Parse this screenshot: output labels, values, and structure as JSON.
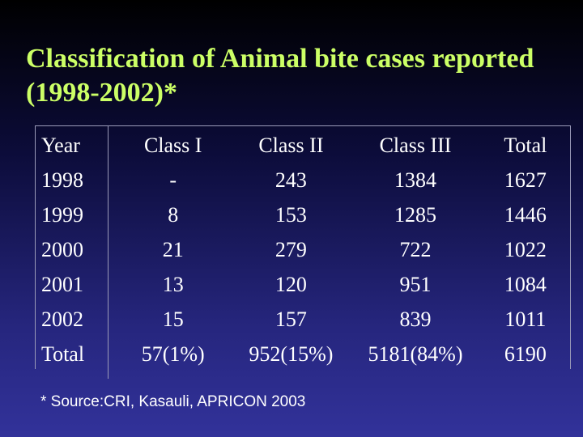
{
  "title": "Classification of Animal bite cases reported (1998-2002)*",
  "table": {
    "headers": [
      "Year",
      "Class I",
      "Class II",
      "Class III",
      "Total"
    ],
    "rows": [
      [
        "1998",
        "-",
        "243",
        "1384",
        "1627"
      ],
      [
        "1999",
        "8",
        "153",
        "1285",
        "1446"
      ],
      [
        "2000",
        "21",
        "279",
        "722",
        "1022"
      ],
      [
        "2001",
        "13",
        "120",
        "951",
        "1084"
      ],
      [
        "2002",
        "15",
        "157",
        "839",
        "1011"
      ],
      [
        "Total",
        "57(1%)",
        "952(15%)",
        "5181(84%)",
        "6190"
      ]
    ]
  },
  "footnote": "* Source:CRI, Kasauli, APRICON 2003",
  "colors": {
    "title": "#ccff66",
    "text": "#ffffff",
    "background": "#26267e"
  }
}
